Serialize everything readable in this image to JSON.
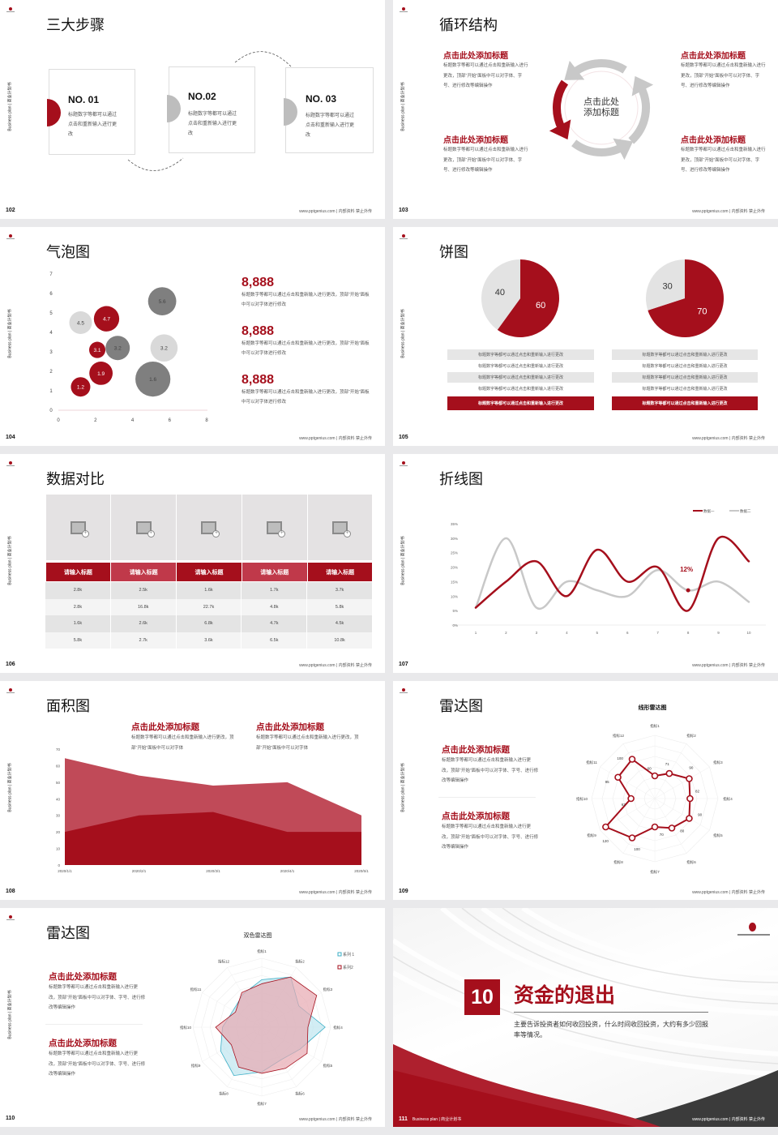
{
  "common": {
    "brand": "Business plan | 商业计划书",
    "footer": "www.pptgenius.com | 内部资料 禁止外传",
    "accent": "#a50f1c",
    "gray_dark": "#7f7f7f",
    "gray_light": "#d9d9d9"
  },
  "s102": {
    "title": "三大步骤",
    "page": "102",
    "steps": [
      {
        "no": "NO. 01",
        "text": "标题数字等都可以通过点击和重新输入进行更改"
      },
      {
        "no": "NO.02",
        "text": "标题数字等都可以通过点击和重新输入进行更改"
      },
      {
        "no": "NO. 03",
        "text": "标题数字等都可以通过点击和重新输入进行更改"
      }
    ]
  },
  "s103": {
    "title": "循环结构",
    "page": "103",
    "center_line1": "点击此处",
    "center_line2": "添加标题",
    "items": [
      {
        "title": "点击此处添加标题",
        "text": "标题数字等都可以通过点击和重新输入进行更改，顶部“开始”面板中可以对字体、字号、进行修改等编辑操作"
      },
      {
        "title": "点击此处添加标题",
        "text": "标题数字等都可以通过点击和重新输入进行更改，顶部“开始”面板中可以对字体、字号、进行修改等编辑操作"
      },
      {
        "title": "点击此处添加标题",
        "text": "标题数字等都可以通过点击和重新输入进行更改，顶部“开始”面板中可以对字体、字号、进行修改等编辑操作"
      },
      {
        "title": "点击此处添加标题",
        "text": "标题数字等都可以通过点击和重新输入进行更改，顶部“开始”面板中可以对字体、字号、进行修改等编辑操作"
      }
    ]
  },
  "s104": {
    "title": "气泡图",
    "page": "104",
    "stats": [
      {
        "value": "8,888",
        "text": "标题数字等都可以通过点击和重新输入进行更改，顶部“开始”面板中可以对字体进行修改"
      },
      {
        "value": "8,888",
        "text": "标题数字等都可以通过点击和重新输入进行更改，顶部“开始”面板中可以对字体进行修改"
      },
      {
        "value": "8,888",
        "text": "标题数字等都可以通过点击和重新输入进行更改，顶部“开始”面板中可以对字体进行修改"
      }
    ]
  },
  "s105": {
    "title": "饼图",
    "page": "105",
    "left_rows": [
      "标题数字等都可以通过点击和重新输入进行更改",
      "标题数字等都可以通过点击和重新输入进行更改",
      "标题数字等都可以通过点击和重新输入进行更改",
      "标题数字等都可以通过点击和重新输入进行更改",
      "标题数字等都可以通过点击和重新输入进行更改"
    ],
    "right_rows": [
      "标题数字等都可以通过点击和重新输入进行更改",
      "标题数字等都可以通过点击和重新输入进行更改",
      "标题数字等都可以通过点击和重新输入进行更改",
      "标题数字等都可以通过点击和重新输入进行更改",
      "标题数字等都可以通过点击和重新输入进行更改"
    ]
  },
  "s106": {
    "title": "数据对比",
    "page": "106",
    "headers": [
      "请输入标题",
      "请输入标题",
      "请输入标题",
      "请输入标题",
      "请输入标题"
    ],
    "rows": [
      [
        "2.8k",
        "2.5k",
        "1.6k",
        "1.7k",
        "3.7k"
      ],
      [
        "2.8k",
        "16.8k",
        "22.7k",
        "4.8k",
        "5.8k"
      ],
      [
        "1.6k",
        "2.6k",
        "6.8k",
        "4.7k",
        "4.5k"
      ],
      [
        "5.8k",
        "2.7k",
        "3.6k",
        "6.5k",
        "10.8k"
      ]
    ]
  },
  "s107": {
    "title": "折线图",
    "page": "107"
  },
  "s108": {
    "title": "面积图",
    "page": "108",
    "blocks": [
      {
        "title": "点击此处添加标题",
        "text": "标题数字等都可以通过点击和重新输入进行更改，顶部“开始”面板中可以对字体"
      },
      {
        "title": "点击此处添加标题",
        "text": "标题数字等都可以通过点击和重新输入进行更改，顶部“开始”面板中可以对字体"
      }
    ]
  },
  "s109": {
    "title": "雷达图",
    "page": "109",
    "blocks": [
      {
        "title": "点击此处添加标题",
        "text": "标题数字等都可以通过点击和重新输入进行更改，顶部“开始”面板中可以对字体、字号、进行修改等编辑操作"
      },
      {
        "title": "点击此处添加标题",
        "text": "标题数字等都可以通过点击和重新输入进行更改，顶部“开始”面板中可以对字体、字号、进行修改等编辑操作"
      }
    ]
  },
  "s110": {
    "title": "雷达图",
    "page": "110",
    "blocks": [
      {
        "title": "点击此处添加标题",
        "text": "标题数字等都可以通过点击和重新输入进行更改，顶部“开始”面板中可以对字体、字号、进行修改等编辑操作"
      },
      {
        "title": "点击此处添加标题",
        "text": "标题数字等都可以通过点击和重新输入进行更改，顶部“开始”面板中可以对字体、字号、进行修改等编辑操作"
      }
    ]
  },
  "s111": {
    "number": "10",
    "title": "资金的退出",
    "desc": "主要告诉投资者如何收回投资，什么时间收回投资，大约有多少回报率等情况。",
    "page": "111",
    "brand": "Business plan | 商业计划书"
  },
  "chart_data": [
    {
      "type": "scatter",
      "subtype": "bubble",
      "xlim": [
        0,
        8
      ],
      "ylim": [
        0,
        7
      ],
      "xticks": [
        0,
        2,
        4,
        6,
        8
      ],
      "yticks": [
        0,
        1,
        2,
        3,
        4,
        5,
        6,
        7
      ],
      "points": [
        {
          "x": 1.2,
          "y": 1.2,
          "size": 1.0,
          "label": "1.2",
          "color": "#a50f1c"
        },
        {
          "x": 2.3,
          "y": 1.9,
          "size": 1.44,
          "label": "1.9",
          "color": "#a50f1c"
        },
        {
          "x": 2.1,
          "y": 3.1,
          "size": 0.7,
          "label": "3.1",
          "color": "#a50f1c"
        },
        {
          "x": 3.2,
          "y": 3.2,
          "size": 1.56,
          "label": "3.2",
          "color": "#7f7f7f"
        },
        {
          "x": 2.6,
          "y": 4.7,
          "size": 1.7,
          "label": "4.7",
          "color": "#a50f1c"
        },
        {
          "x": 1.2,
          "y": 4.5,
          "size": 1.36,
          "label": "4.5",
          "color": "#d9d9d9"
        },
        {
          "x": 5.6,
          "y": 5.6,
          "size": 2.1,
          "label": "5.6",
          "color": "#7f7f7f"
        },
        {
          "x": 5.7,
          "y": 3.2,
          "size": 1.96,
          "label": "3.2",
          "color": "#d9d9d9"
        },
        {
          "x": 5.1,
          "y": 1.6,
          "size": 3.24,
          "label": "1.6",
          "color": "#7f7f7f"
        }
      ]
    },
    {
      "type": "pie",
      "slices": [
        {
          "value": 60,
          "label": "60",
          "color": "#a50f1c"
        },
        {
          "value": 40,
          "label": "40",
          "color": "#e3e3e3"
        }
      ]
    },
    {
      "type": "pie",
      "slices": [
        {
          "value": 70,
          "label": "70",
          "color": "#a50f1c"
        },
        {
          "value": 30,
          "label": "30",
          "color": "#e3e3e3"
        }
      ]
    },
    {
      "type": "line",
      "smooth": true,
      "categories": [
        "1",
        "2",
        "3",
        "4",
        "5",
        "6",
        "7",
        "8",
        "9",
        "10"
      ],
      "ylim": [
        0,
        35
      ],
      "yticks": [
        "0%",
        "5%",
        "10%",
        "15%",
        "20%",
        "25%",
        "30%",
        "35%"
      ],
      "legend": "top-right",
      "series": [
        {
          "name": "数据一",
          "color": "#a50f1c",
          "values": [
            6,
            15,
            22,
            10,
            26,
            15,
            20,
            5,
            30,
            22
          ]
        },
        {
          "name": "数据二",
          "color": "#c8c8c8",
          "values": [
            6,
            30,
            6,
            15,
            12,
            10,
            19,
            12,
            15,
            8
          ]
        }
      ],
      "annotation": {
        "x": "8",
        "value": 12,
        "text": "12%"
      }
    },
    {
      "type": "area",
      "categories": [
        "2020/1/1",
        "2020/2/1",
        "2020/3/1",
        "2020/4/1",
        "2020/5/1"
      ],
      "ylim": [
        0,
        70
      ],
      "yticks": [
        0,
        10,
        20,
        30,
        40,
        50,
        60,
        70
      ],
      "series": [
        {
          "color": "#c04a58",
          "values": [
            64.5,
            54,
            48,
            50,
            30
          ]
        },
        {
          "color": "#a50f1c",
          "values": [
            20,
            30,
            32,
            20,
            20
          ]
        }
      ]
    },
    {
      "type": "radar",
      "title": "线形雷达图",
      "axes": [
        "指标1",
        "指标2",
        "指标3",
        "指标4",
        "指标5",
        "指标6",
        "指标7",
        "指标8",
        "指标9",
        "指标10",
        "指标11",
        "指标12"
      ],
      "series": [
        {
          "color": "#a50f1c",
          "values": [
            60,
            71,
            90,
            82,
            90,
            80,
            70,
            100,
            120,
            62,
            95,
            100
          ]
        }
      ]
    },
    {
      "type": "radar",
      "title": "双色雷达图",
      "legend": "top-right",
      "rmax": 10,
      "axes": [
        "指标1",
        "指标2",
        "指标3",
        "指标4",
        "指标5",
        "指标6",
        "指标7",
        "指标8",
        "指标9",
        "指标10",
        "指标11",
        "指标12"
      ],
      "series": [
        {
          "name": "系列 1",
          "color": "#3aaec6",
          "fill": "#bfe6ef",
          "values": [
            6.9,
            8.4,
            6.2,
            9.2,
            6.4,
            5.5,
            6.5,
            8.1,
            6.9,
            5.7,
            4.8,
            5.5
          ]
        },
        {
          "name": "系列2",
          "color": "#a50f1c",
          "fill": "#e7a8b0",
          "values": [
            6.3,
            8.4,
            9.2,
            6.7,
            7.6,
            6.9,
            6.7,
            6.7,
            5.1,
            6.7,
            4.4,
            5.8
          ]
        }
      ]
    }
  ]
}
